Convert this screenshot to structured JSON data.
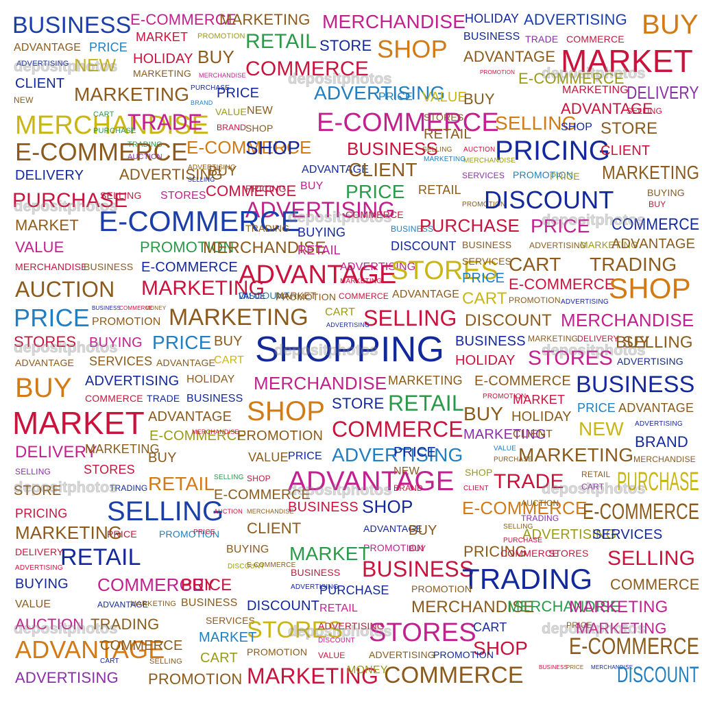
{
  "palette": {
    "blue": "#1b3fa8",
    "navy": "#13289a",
    "sky": "#1f7fc2",
    "red": "#c8143c",
    "magenta": "#c21f8f",
    "purple": "#8a2fa5",
    "brown": "#8b5a1c",
    "olive": "#9a9a16",
    "yellow": "#c9b614",
    "green": "#2a9a48",
    "orange": "#d27a16",
    "teal": "#14999a",
    "gray": "#666666"
  },
  "watermark_text": "depositphotos",
  "words": [
    "BUSINESS",
    "E-COMMERCE",
    "MARKETING",
    "MERCHANDISE",
    "HOLIDAY",
    "ADVERTISING",
    "BUY",
    "ADVANTAGE",
    "PRICE",
    "MARKET",
    "PROMOTION",
    "RETAIL",
    "STORE",
    "SHOP",
    "BUSINESS",
    "TRADE",
    "COMMERCE",
    "ADVERTISING",
    "NEW",
    "HOLIDAY",
    "BUY",
    "ADVANTAGE",
    "MARKET",
    "CLIENT",
    "MARKETING",
    "MERCHANDISE",
    "COMMERCE",
    "PROMOTION",
    "E-COMMERCE",
    "NEW",
    "MARKETING",
    "PURCHASE",
    "PRICE",
    "ADVERTISING",
    "PRICE",
    "VALUE",
    "BUY",
    "MARKETING",
    "DELIVERY",
    "BRAND",
    "VALUE",
    "NEW",
    "ADVANTAGE",
    "SELLING",
    "MERCHANDISE",
    "CART",
    "TRADE",
    "BRAND",
    "SHOP",
    "E-COMMERCE",
    "STORES",
    "SELLING",
    "SHOP",
    "STORE",
    "PURCHASE",
    "RETAIL",
    "TRADING",
    "E-COMMERCE",
    "SHOP",
    "BUSINESS",
    "SELLING",
    "AUCTION",
    "PRICING",
    "CLIENT",
    "E-COMMERCE",
    "AUCTION",
    "MERCHANDISE",
    "MARKETING",
    "ADVERTISING",
    "BUY",
    "ADVANTAGE",
    "CLIENT",
    "MARKETING",
    "SERVICES",
    "PROMOTION",
    "PRICE",
    "DELIVERY",
    "ADVERTISING",
    "SELLING",
    "PRICE",
    "RETAIL",
    "BUYING",
    "PURCHASE",
    "SELLING",
    "STORES",
    "COMMERCE",
    "PRICING",
    "BUY",
    "PROMOTION",
    "DISCOUNT",
    "BUY",
    "ADVERTISING",
    "COMMERCE",
    "MARKET",
    "E-COMMERCE",
    "TRADING",
    "BUSINESS",
    "PURCHASE",
    "PRICE",
    "COMMERCE",
    "BUYING",
    "BUSINESS",
    "ADVERTISING",
    "MARKETING",
    "ADVANTAGE",
    "VALUE",
    "PROMOTION",
    "MERCHANDISE",
    "RETAIL",
    "DISCOUNT",
    "MERCHANDISE",
    "BUSINESS",
    "E-COMMERCE",
    "ADVANTAGE",
    "ADVERTISING",
    "STORES",
    "SERVICES",
    "CART",
    "TRADING",
    "AUCTION",
    "MARKETING",
    "DISCOUNT",
    "MARKET",
    "MARKETING",
    "PRICE",
    "E-COMMERCE",
    "SHOP",
    "VALUE",
    "PROMOTION",
    "COMMERCE",
    "ADVANTAGE",
    "CART",
    "PROMOTION",
    "ADVERTISING",
    "PRICE",
    "BUSINESS",
    "COMMERCE",
    "MONEY",
    "MARKETING",
    "CART",
    "SELLING",
    "DISCOUNT",
    "MERCHANDISE",
    "PROMOTION",
    "ADVERTISING",
    "STORES",
    "BUYING",
    "PRICE",
    "BUY",
    "SHOPPING",
    "BUSINESS",
    "MARKETING",
    "DELIVERY",
    "BUY",
    "SELLING",
    "ADVANTAGE",
    "SERVICES",
    "ADVANTAGE",
    "CART",
    "HOLIDAY",
    "STORES",
    "ADVERTISING",
    "BUY",
    "ADVERTISING",
    "HOLIDAY",
    "MERCHANDISE",
    "MARKETING",
    "E-COMMERCE",
    "BUSINESS",
    "COMMERCE",
    "TRADE",
    "BUSINESS",
    "PROMOTION",
    "MARKET",
    "PRICE",
    "ADVANTAGE",
    "STORE",
    "RETAIL",
    "SHOP",
    "BUY",
    "HOLIDAY",
    "ADVERTISING",
    "MARKET",
    "ADVANTAGE",
    "COMMERCE",
    "NEW",
    "E-COMMERCE",
    "MERCHANDISE",
    "PROMOTION",
    "MARKETING",
    "CLIENT",
    "BRAND",
    "DELIVERY",
    "MARKETING",
    "BUY",
    "VALUE",
    "PRICE",
    "ADVERTISING",
    "PRICE",
    "VALUE",
    "PURCHASE",
    "MARKETING",
    "MERCHANDISE",
    "SELLING",
    "STORES",
    "ADVANTAGE",
    "NEW",
    "SHOP",
    "RETAIL",
    "SELLING",
    "SHOP",
    "BRAND",
    "TRADE",
    "RETAIL",
    "CART",
    "PURCHASE",
    "STORE",
    "TRADING",
    "E-COMMERCE",
    "CLIENT",
    "SELLING",
    "BUSINESS",
    "SHOP",
    "E-COMMERCE",
    "AUCTION",
    "E-COMMERCE",
    "PRICING",
    "AUCTION",
    "MERCHANDISE",
    "TRADING",
    "MARKETING",
    "CLIENT",
    "ADVANTAGE",
    "BUY",
    "SELLING",
    "ADVERTISING",
    "SERVICES",
    "DELIVERY",
    "PRICE",
    "PROMOTION",
    "PRICE",
    "PURCHASE",
    "BUYING",
    "PROMOTION",
    "BUY",
    "PRICING",
    "COMMERCE",
    "STORES",
    "SELLING",
    "ADVERTISING",
    "RETAIL",
    "MARKET",
    "BUSINESS",
    "TRADING",
    "COMMERCE",
    "BUY",
    "DISCOUNT",
    "E-COMMERCE",
    "BUSINESS",
    "BUYING",
    "COMMERCE",
    "PRICE",
    "ADVERTISING",
    "PURCHASE",
    "PROMOTION",
    "VALUE",
    "ADVANTAGE",
    "MARKETING",
    "BUSINESS",
    "DISCOUNT",
    "RETAIL",
    "MERCHANDISE",
    "MERCHANDISE",
    "MARKETING",
    "AUCTION",
    "TRADING",
    "SERVICES",
    "STORES",
    "ADVERTISING",
    "STORES",
    "CART",
    "PRICE",
    "MARKETING",
    "MARKET",
    "DISCOUNT",
    "SHOP",
    "E-COMMERCE",
    "ADVANTAGE",
    "COMMERCE",
    "PROMOTION",
    "VALUE",
    "ADVERTISING",
    "PROMOTION",
    "CART",
    "SELLING",
    "CART",
    "MARKETING",
    "MONEY",
    "COMMERCE",
    "BUSINESS",
    "PRICE",
    "MERCHANDISE",
    "DISCOUNT",
    "ADVERTISING",
    "PROMOTION"
  ]
}
